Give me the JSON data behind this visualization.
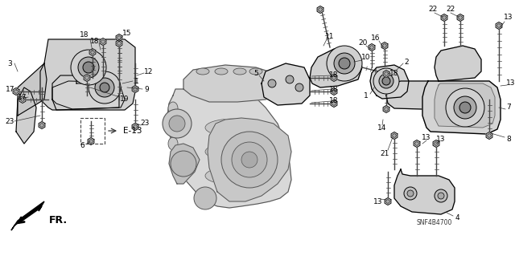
{
  "bg_color": "#ffffff",
  "line_color": "#000000",
  "part_color": "#888888",
  "part_fill": "#e8e8e8",
  "label_fontsize": 6.5,
  "part_number_code": "SNF4B4700",
  "fr_label": "FR.",
  "e13_label": "E-13",
  "figsize": [
    6.4,
    3.19
  ],
  "dpi": 100
}
